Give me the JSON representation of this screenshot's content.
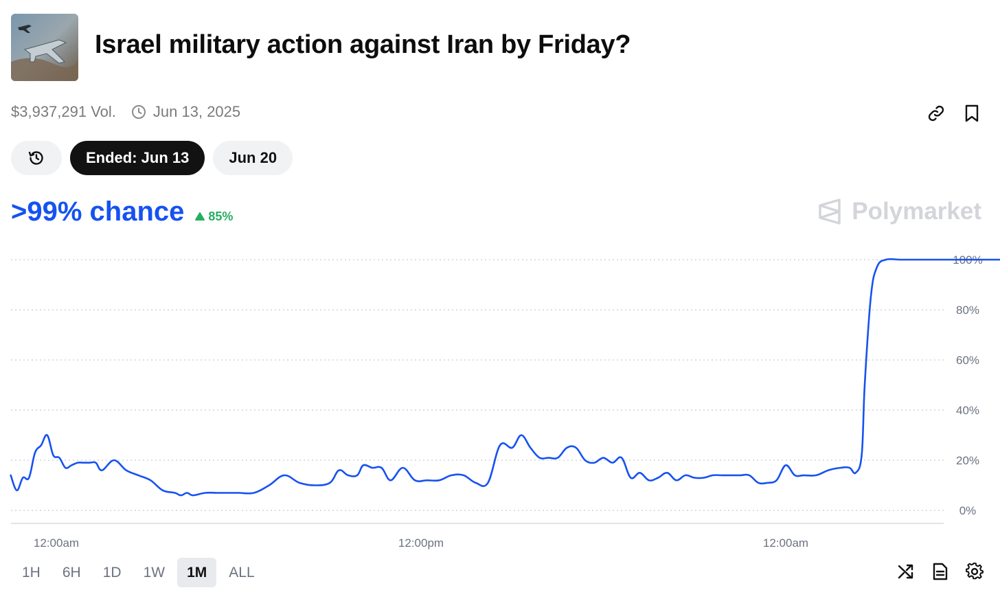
{
  "market": {
    "title": "Israel military action against Iran by Friday?",
    "volume": "$3,937,291 Vol.",
    "date": "Jun 13, 2025",
    "thumbnail_icon": "fighter-jet-image"
  },
  "pills": {
    "history_icon": "history-icon",
    "ended": "Ended: Jun 13",
    "next": "Jun 20"
  },
  "headline": {
    "chance": ">99% chance",
    "delta": "85%",
    "delta_direction": "up",
    "chance_color": "#1652f0",
    "delta_color": "#27ae60"
  },
  "brand": {
    "name": "Polymarket",
    "icon": "polymarket-logo-icon"
  },
  "chart_data": {
    "type": "line",
    "title": "",
    "xlabel": "",
    "ylabel": "",
    "ylim": [
      0,
      100
    ],
    "yticks": [
      0,
      20,
      40,
      60,
      80,
      100
    ],
    "ytick_labels": [
      "0%",
      "20%",
      "40%",
      "60%",
      "80%",
      "100%"
    ],
    "xtick_labels": [
      "12:00am",
      "12:00pm",
      "12:00am"
    ],
    "xtick_hours": [
      0,
      12,
      24
    ],
    "x_unit": "hours from first 12:00am tick",
    "grid": "horizontal dotted",
    "line_color": "#1652f0",
    "series": [
      {
        "x": [
          -1.5,
          -1.3,
          -1.1,
          -0.9,
          -0.7,
          -0.5,
          -0.3,
          -0.1,
          0.1,
          0.3,
          0.5,
          0.7,
          0.9,
          1.1,
          1.3,
          1.5,
          1.9,
          2.3,
          2.7,
          3.1,
          3.5,
          3.9,
          4.1,
          4.3,
          4.5,
          4.9,
          5.3,
          5.6,
          6.0,
          6.5,
          7.0,
          7.5,
          8.0,
          8.5,
          9.0,
          9.3,
          9.6,
          9.9,
          10.1,
          10.4,
          10.7,
          11.0,
          11.4,
          11.8,
          12.2,
          12.6,
          13.0,
          13.4,
          13.8,
          14.2,
          14.6,
          15.0,
          15.3,
          15.6,
          15.9,
          16.2,
          16.5,
          16.8,
          17.1,
          17.4,
          17.7,
          18.0,
          18.3,
          18.6,
          18.9,
          19.2,
          19.5,
          19.8,
          20.1,
          20.4,
          20.7,
          21.0,
          21.3,
          21.6,
          21.9,
          22.2,
          22.5,
          22.8,
          23.1,
          23.4,
          23.7,
          24.0,
          24.3,
          24.6,
          25.0,
          25.4,
          25.8,
          26.1,
          26.3,
          26.5,
          26.6,
          26.8,
          27.0,
          27.3,
          27.8,
          28.5,
          29.5,
          30.5,
          31.5,
          32.5,
          33.4
        ],
        "values": [
          14,
          8,
          13,
          13,
          23,
          26,
          30,
          22,
          21,
          17,
          18,
          19,
          19,
          19,
          19,
          16,
          20,
          16,
          14,
          12,
          8,
          7,
          6,
          7,
          6,
          7,
          7,
          7,
          7,
          7,
          10,
          14,
          11,
          10,
          11,
          16,
          14,
          14,
          18,
          17,
          17,
          12,
          17,
          12,
          12,
          12,
          14,
          14,
          11,
          11,
          26,
          25,
          30,
          25,
          21,
          21,
          21,
          25,
          25,
          20,
          19,
          21,
          19,
          21,
          13,
          15,
          12,
          13,
          15,
          12,
          14,
          13,
          13,
          14,
          14,
          14,
          14,
          14,
          11,
          11,
          12,
          18,
          14,
          14,
          14,
          16,
          17,
          17,
          15,
          22,
          50,
          85,
          97,
          100,
          100,
          100,
          100,
          100,
          100,
          100,
          100
        ]
      }
    ]
  },
  "ranges": [
    "1H",
    "6H",
    "1D",
    "1W",
    "1M",
    "ALL"
  ],
  "active_range": "1M",
  "tools": [
    "shuffle-icon",
    "document-icon",
    "gear-icon"
  ],
  "top_tools": [
    "link-icon",
    "bookmark-icon"
  ]
}
